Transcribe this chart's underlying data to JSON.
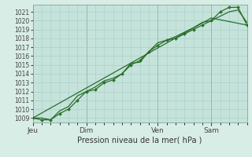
{
  "xlabel": "Pression niveau de la mer( hPa )",
  "fig_bg_color": "#d8ede6",
  "plot_bg_color": "#c5e3db",
  "grid_color": "#aacfc7",
  "line_color": "#2a6e2a",
  "marker_color": "#2a6e2a",
  "spine_color": "#7aaa96",
  "tick_color": "#444444",
  "ylim": [
    1008.5,
    1021.8
  ],
  "yticks": [
    1009,
    1010,
    1011,
    1012,
    1013,
    1014,
    1015,
    1016,
    1017,
    1018,
    1019,
    1020,
    1021
  ],
  "xlim": [
    0,
    144
  ],
  "day_labels": [
    "Jeu",
    "Dim",
    "Ven",
    "Sam"
  ],
  "day_positions": [
    0,
    36,
    84,
    120
  ],
  "line1_x": [
    0,
    6,
    12,
    18,
    24,
    30,
    36,
    42,
    48,
    54,
    60,
    66,
    72,
    78,
    84,
    90,
    96,
    102,
    108,
    114,
    120,
    126,
    132,
    138,
    144
  ],
  "line1_y": [
    1009.0,
    1009.0,
    1008.8,
    1009.8,
    1010.3,
    1011.5,
    1012.0,
    1012.5,
    1013.2,
    1013.5,
    1014.0,
    1015.2,
    1015.3,
    1016.5,
    1017.5,
    1017.8,
    1018.2,
    1018.7,
    1019.2,
    1019.8,
    1020.0,
    1020.5,
    1021.0,
    1021.2,
    1019.8
  ],
  "line2_x": [
    0,
    6,
    12,
    18,
    24,
    30,
    36,
    42,
    48,
    54,
    60,
    66,
    72,
    78,
    84,
    90,
    96,
    102,
    108,
    114,
    120,
    126,
    132,
    138,
    144
  ],
  "line2_y": [
    1009.0,
    1008.8,
    1008.8,
    1009.5,
    1010.0,
    1011.0,
    1012.0,
    1012.2,
    1013.0,
    1013.3,
    1014.0,
    1015.0,
    1015.5,
    1016.5,
    1017.2,
    1017.8,
    1018.0,
    1018.5,
    1019.0,
    1019.5,
    1020.0,
    1021.0,
    1021.5,
    1021.5,
    1019.5
  ],
  "line3_x": [
    0,
    120,
    144
  ],
  "line3_y": [
    1009.0,
    1020.3,
    1019.5
  ]
}
